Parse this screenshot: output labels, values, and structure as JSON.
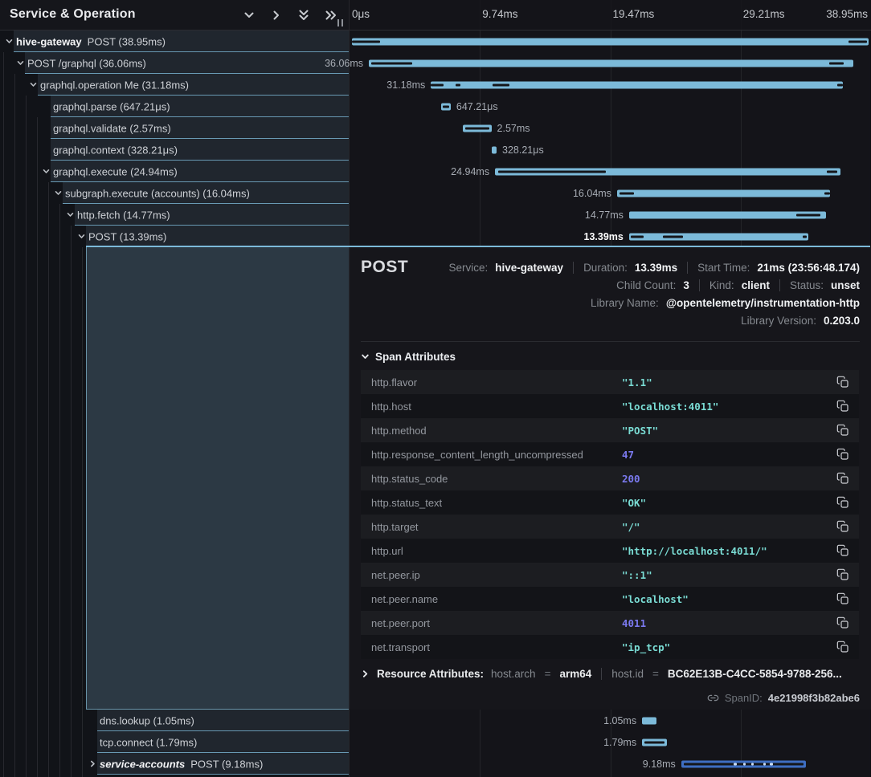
{
  "header": {
    "title": "Service & Operation"
  },
  "timeline": {
    "total": "38.95ms",
    "ticks": [
      {
        "label": "0μs",
        "pos": 0
      },
      {
        "label": "9.74ms",
        "pos": 25
      },
      {
        "label": "19.47ms",
        "pos": 50
      },
      {
        "label": "29.21ms",
        "pos": 75
      },
      {
        "label": "38.95ms",
        "pos": 100
      }
    ]
  },
  "spans": [
    {
      "service": "hive-gateway",
      "op": "POST (38.95ms)",
      "chevron": "down",
      "indent": 6,
      "bar": {
        "l": 0.4,
        "w": 99.2,
        "label": "",
        "side": "none",
        "ticks": [
          [
            0,
            5.5
          ],
          [
            96,
            99.6
          ]
        ]
      }
    },
    {
      "op": "POST /graphql (36.06ms)",
      "chevron": "down",
      "indent": 20,
      "bar": {
        "l": 3.7,
        "w": 92.9,
        "label": "36.06ms",
        "side": "left",
        "ticks": [
          [
            0.5,
            9
          ],
          [
            95,
            98
          ]
        ]
      }
    },
    {
      "op": "graphql.operation Me (31.18ms)",
      "chevron": "down",
      "indent": 36,
      "bar": {
        "l": 15.6,
        "w": 79.0,
        "label": "31.18ms",
        "side": "left",
        "ticks": [
          [
            0,
            3
          ],
          [
            6,
            7.2
          ],
          [
            15,
            19
          ],
          [
            98.6,
            100
          ]
        ]
      }
    },
    {
      "op": "graphql.parse (647.21μs)",
      "chevron": null,
      "indent": 52,
      "bar": {
        "l": 17.6,
        "w": 1.8,
        "label": "647.21μs",
        "side": "right",
        "ticks": [
          [
            15,
            85
          ]
        ]
      }
    },
    {
      "op": "graphql.validate (2.57ms)",
      "chevron": null,
      "indent": 52,
      "bar": {
        "l": 21.8,
        "w": 5.4,
        "label": "2.57ms",
        "side": "right",
        "ticks": [
          [
            8,
            92
          ]
        ]
      }
    },
    {
      "op": "graphql.context (328.21μs)",
      "chevron": null,
      "indent": 52,
      "bar": {
        "l": 27.3,
        "w": 0.9,
        "label": "328.21μs",
        "side": "right",
        "ticks": []
      }
    },
    {
      "op": "graphql.execute (24.94ms)",
      "chevron": "down",
      "indent": 52,
      "bar": {
        "l": 27.9,
        "w": 66.3,
        "label": "24.94ms",
        "side": "left",
        "ticks": [
          [
            1,
            32
          ],
          [
            96,
            99
          ]
        ]
      }
    },
    {
      "op": "subgraph.execute (accounts) (16.04ms)",
      "chevron": "down",
      "indent": 67,
      "bar": {
        "l": 51.3,
        "w": 40.8,
        "label": "16.04ms",
        "side": "left",
        "ticks": [
          [
            1,
            8
          ],
          [
            97.5,
            100
          ]
        ]
      }
    },
    {
      "op": "http.fetch (14.77ms)",
      "chevron": "down",
      "indent": 82,
      "bar": {
        "l": 53.6,
        "w": 37.8,
        "label": "14.77ms",
        "side": "left",
        "ticks": [
          [
            85,
            97
          ]
        ]
      }
    },
    {
      "op": "POST (13.39ms)",
      "chevron": "down",
      "indent": 96,
      "selected": true,
      "bar": {
        "l": 53.6,
        "w": 34.4,
        "label": "13.39ms",
        "side": "left",
        "ticks": [
          [
            1,
            8
          ],
          [
            19,
            30
          ],
          [
            97,
            99
          ]
        ]
      }
    }
  ],
  "bottom_spans": [
    {
      "op": "dns.lookup (1.05ms)",
      "chevron": null,
      "indent": 110,
      "bar": {
        "l": 56.1,
        "w": 2.8,
        "label": "1.05ms",
        "side": "left",
        "ticks": []
      }
    },
    {
      "op": "tcp.connect (1.79ms)",
      "chevron": null,
      "indent": 110,
      "bar": {
        "l": 56.1,
        "w": 4.7,
        "label": "1.79ms",
        "side": "left",
        "ticks": [
          [
            8,
            92
          ]
        ]
      }
    },
    {
      "service": "service-accounts",
      "service_italic": true,
      "op": "POST (9.18ms)",
      "chevron": "right",
      "indent": 110,
      "bar": {
        "l": 63.6,
        "w": 23.9,
        "label": "9.18ms",
        "side": "left",
        "color": "blue",
        "ticks": [
          [
            2,
            98
          ]
        ],
        "light_ticks": [
          [
            42,
            44.5
          ],
          [
            50,
            52
          ],
          [
            56,
            58
          ],
          [
            66,
            68
          ],
          [
            71,
            73.5
          ]
        ]
      }
    }
  ],
  "detail": {
    "title": "POST",
    "meta_lines": [
      [
        {
          "label": "Service:",
          "value": "hive-gateway"
        },
        {
          "label": "Duration:",
          "value": "13.39ms"
        },
        {
          "label": "Start Time:",
          "value": "21ms (23:56:48.174)"
        }
      ],
      [
        {
          "label": "Child Count:",
          "value": "3"
        },
        {
          "label": "Kind:",
          "value": "client"
        },
        {
          "label": "Status:",
          "value": "unset"
        }
      ],
      [
        {
          "label": "Library Name:",
          "value": "@opentelemetry/instrumentation-http"
        }
      ],
      [
        {
          "label": "Library Version:",
          "value": "0.203.0"
        }
      ]
    ],
    "attributes_title": "Span Attributes",
    "attributes": [
      {
        "key": "http.flavor",
        "value": "\"1.1\"",
        "type": "string"
      },
      {
        "key": "http.host",
        "value": "\"localhost:4011\"",
        "type": "string"
      },
      {
        "key": "http.method",
        "value": "\"POST\"",
        "type": "string"
      },
      {
        "key": "http.response_content_length_uncompressed",
        "value": "47",
        "type": "number"
      },
      {
        "key": "http.status_code",
        "value": "200",
        "type": "number"
      },
      {
        "key": "http.status_text",
        "value": "\"OK\"",
        "type": "string"
      },
      {
        "key": "http.target",
        "value": "\"/\"",
        "type": "string"
      },
      {
        "key": "http.url",
        "value": "\"http://localhost:4011/\"",
        "type": "string"
      },
      {
        "key": "net.peer.ip",
        "value": "\"::1\"",
        "type": "string"
      },
      {
        "key": "net.peer.name",
        "value": "\"localhost\"",
        "type": "string"
      },
      {
        "key": "net.peer.port",
        "value": "4011",
        "type": "number"
      },
      {
        "key": "net.transport",
        "value": "\"ip_tcp\"",
        "type": "string"
      }
    ],
    "resource_title": "Resource Attributes:",
    "resource": [
      {
        "key": "host.arch",
        "value": "arm64"
      },
      {
        "key": "host.id",
        "value": "BC62E13B-C4CC-5854-9788-256..."
      }
    ],
    "span_id_label": "SpanID:",
    "span_id": "4e21998f3b82abe6"
  },
  "colors": {
    "bar": "#7cbad9",
    "bar_blue": "#3e6ec2",
    "accent_line": "#7cbad9",
    "string_value": "#7adcd4",
    "number_value": "#7b7af0",
    "highlight_bg": "#2c3944"
  }
}
